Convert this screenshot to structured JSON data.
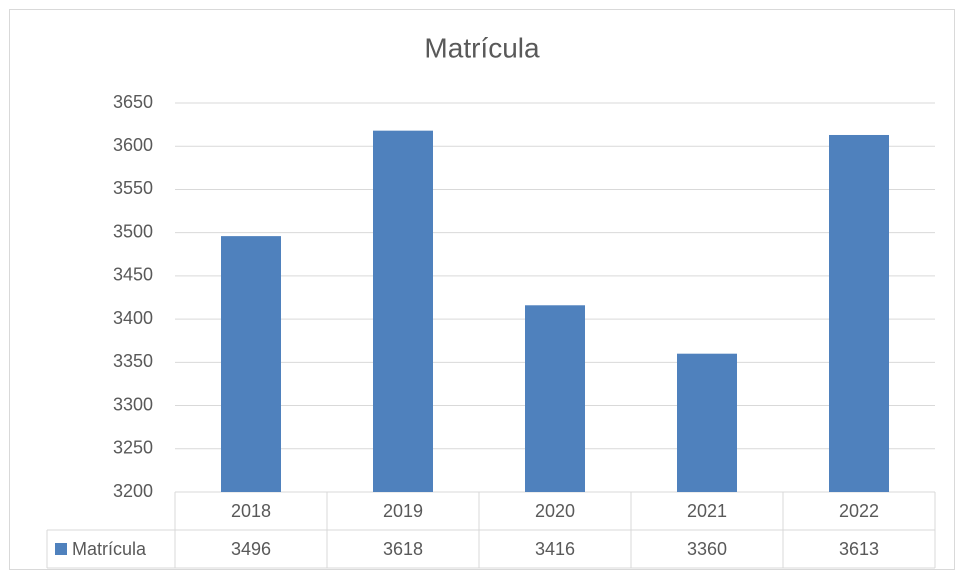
{
  "chart_data": {
    "type": "bar",
    "title": "Matrícula",
    "categories": [
      "2018",
      "2019",
      "2020",
      "2021",
      "2022"
    ],
    "series": [
      {
        "name": "Matrícula",
        "color": "#4f81bd",
        "values": [
          3496,
          3618,
          3416,
          3360,
          3613
        ]
      }
    ],
    "ylim": [
      3200,
      3650
    ],
    "yticks": [
      3200,
      3250,
      3300,
      3350,
      3400,
      3450,
      3500,
      3550,
      3600,
      3650
    ],
    "grid": true,
    "data_table": true
  }
}
